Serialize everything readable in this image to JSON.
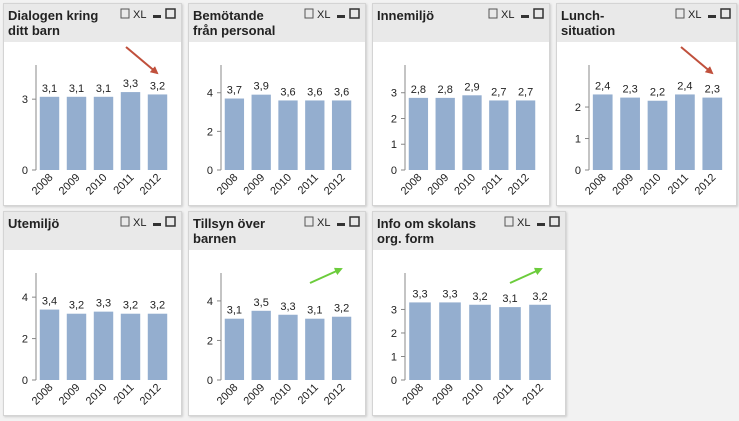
{
  "toolbar_label": "XL",
  "chart_data": [
    {
      "type": "bar",
      "title_lines": [
        "Dialogen kring",
        "ditt barn"
      ],
      "categories": [
        "2008",
        "2009",
        "2010",
        "2011",
        "2012"
      ],
      "values": [
        3.1,
        3.1,
        3.1,
        3.3,
        3.2
      ],
      "value_labels": [
        "3,1",
        "3,1",
        "3,1",
        "3,3",
        "3,2"
      ],
      "ylim": [
        0,
        3.6
      ],
      "yticks": [
        0,
        3
      ],
      "color": "#94aecf",
      "trend_arrow": {
        "direction": "down",
        "color": "#c0503c"
      }
    },
    {
      "type": "bar",
      "title_lines": [
        "Bemötande",
        "från personal"
      ],
      "categories": [
        "2008",
        "2009",
        "2010",
        "2011",
        "2012"
      ],
      "values": [
        3.7,
        3.9,
        3.6,
        3.6,
        3.6
      ],
      "value_labels": [
        "3,7",
        "3,9",
        "3,6",
        "3,6",
        "3,6"
      ],
      "ylim": [
        0,
        4.4
      ],
      "yticks": [
        0,
        2,
        4
      ],
      "color": "#94aecf"
    },
    {
      "type": "bar",
      "title_lines": [
        "Innemiljö"
      ],
      "categories": [
        "2008",
        "2009",
        "2010",
        "2011",
        "2012"
      ],
      "values": [
        2.8,
        2.8,
        2.9,
        2.7,
        2.7
      ],
      "value_labels": [
        "2,8",
        "2,8",
        "2,9",
        "2,7",
        "2,7"
      ],
      "ylim": [
        0,
        3.3
      ],
      "yticks": [
        0,
        1,
        2,
        3
      ],
      "color": "#94aecf"
    },
    {
      "type": "bar",
      "title_lines": [
        "Lunch-",
        "situation"
      ],
      "categories": [
        "2008",
        "2009",
        "2010",
        "2011",
        "2012"
      ],
      "values": [
        2.4,
        2.3,
        2.2,
        2.4,
        2.3
      ],
      "value_labels": [
        "2,4",
        "2,3",
        "2,2",
        "2,4",
        "2,3"
      ],
      "ylim": [
        0,
        2.7
      ],
      "yticks": [
        0,
        1,
        2
      ],
      "color": "#94aecf",
      "trend_arrow": {
        "direction": "down",
        "color": "#c0503c"
      }
    },
    {
      "type": "bar",
      "title_lines": [
        "Utemiljö"
      ],
      "categories": [
        "2008",
        "2009",
        "2010",
        "2011",
        "2012"
      ],
      "values": [
        3.4,
        3.2,
        3.3,
        3.2,
        3.2
      ],
      "value_labels": [
        "3,4",
        "3,2",
        "3,3",
        "3,2",
        "3,2"
      ],
      "ylim": [
        0,
        4.2
      ],
      "yticks": [
        0,
        2,
        4
      ],
      "color": "#94aecf"
    },
    {
      "type": "bar",
      "title_lines": [
        "Tillsyn över",
        "barnen"
      ],
      "categories": [
        "2008",
        "2009",
        "2010",
        "2011",
        "2012"
      ],
      "values": [
        3.1,
        3.5,
        3.3,
        3.1,
        3.2
      ],
      "value_labels": [
        "3,1",
        "3,5",
        "3,3",
        "3,1",
        "3,2"
      ],
      "ylim": [
        0,
        4.4
      ],
      "yticks": [
        0,
        2,
        4
      ],
      "color": "#94aecf",
      "trend_arrow": {
        "direction": "up",
        "color": "#6ccc3c"
      }
    },
    {
      "type": "bar",
      "title_lines": [
        "Info om skolans",
        "org. form"
      ],
      "categories": [
        "2008",
        "2009",
        "2010",
        "2011",
        "2012"
      ],
      "values": [
        3.3,
        3.3,
        3.2,
        3.1,
        3.2
      ],
      "value_labels": [
        "3,3",
        "3,3",
        "3,2",
        "3,1",
        "3,2"
      ],
      "ylim": [
        0,
        3.7
      ],
      "yticks": [
        0,
        1,
        2,
        3
      ],
      "color": "#94aecf",
      "trend_arrow": {
        "direction": "up",
        "color": "#6ccc3c"
      }
    }
  ]
}
